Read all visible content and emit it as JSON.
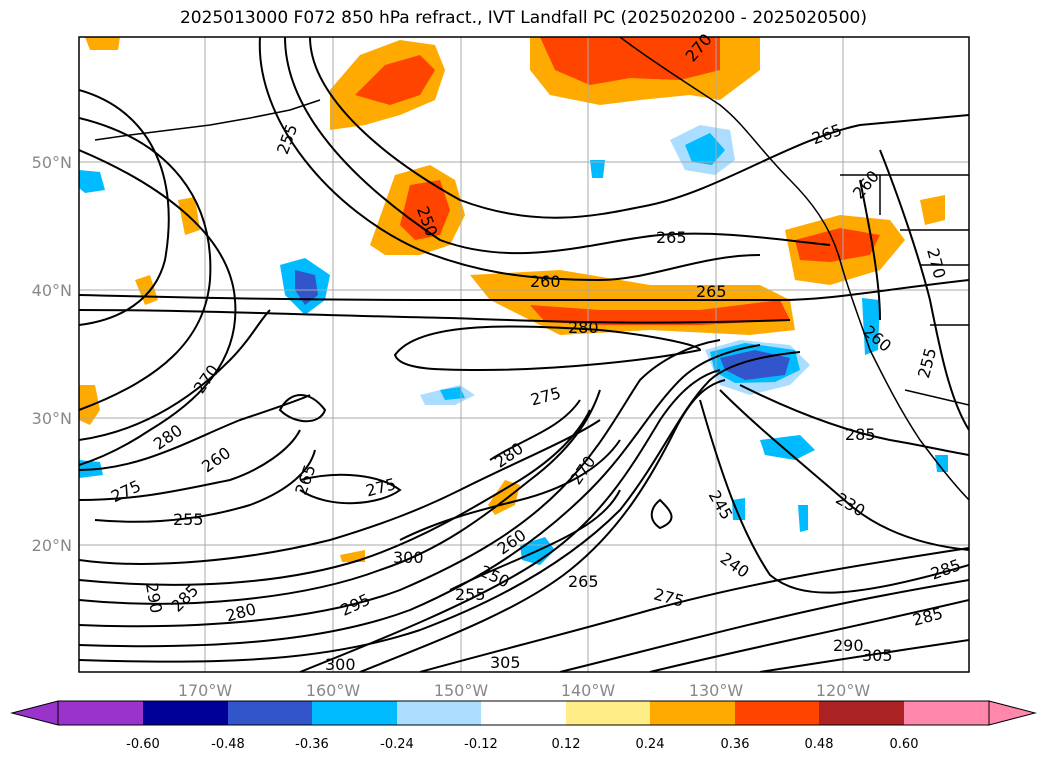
{
  "title": "2025013000 F072 850 hPa refract., IVT Landfall PC (2025020200 - 2025020500)",
  "colors": {
    "contour": "#000000",
    "grid": "#aaaaaa",
    "coast": "#000000",
    "axis_label": "#888888"
  },
  "chart_data": {
    "type": "map",
    "lat_ticks": [
      "50°N",
      "40°N",
      "30°N",
      "20°N"
    ],
    "lon_ticks": [
      "170°W",
      "160°W",
      "150°W",
      "140°W",
      "130°W",
      "120°W"
    ],
    "contour_labels": [
      "255",
      "265",
      "250",
      "265",
      "260",
      "265",
      "280",
      "270",
      "280",
      "260",
      "275",
      "255",
      "265",
      "275",
      "280",
      "275",
      "270",
      "260",
      "250",
      "255",
      "265",
      "300",
      "295",
      "280",
      "285",
      "290",
      "305",
      "300",
      "275",
      "285",
      "245",
      "240",
      "230",
      "285",
      "290",
      "305",
      "285",
      "255",
      "260",
      "270",
      "260",
      "270"
    ],
    "colorbar": {
      "ticks": [
        "-0.60",
        "-0.48",
        "-0.36",
        "-0.24",
        "-0.12",
        "0.12",
        "0.24",
        "0.36",
        "0.48",
        "0.60"
      ],
      "colors": [
        "#9933cc",
        "#000099",
        "#3355cc",
        "#00bbff",
        "#aaddff",
        "#ffffff",
        "#ffee88",
        "#ffaa00",
        "#ff4400",
        "#aa2222",
        "#ff88aa"
      ]
    }
  }
}
